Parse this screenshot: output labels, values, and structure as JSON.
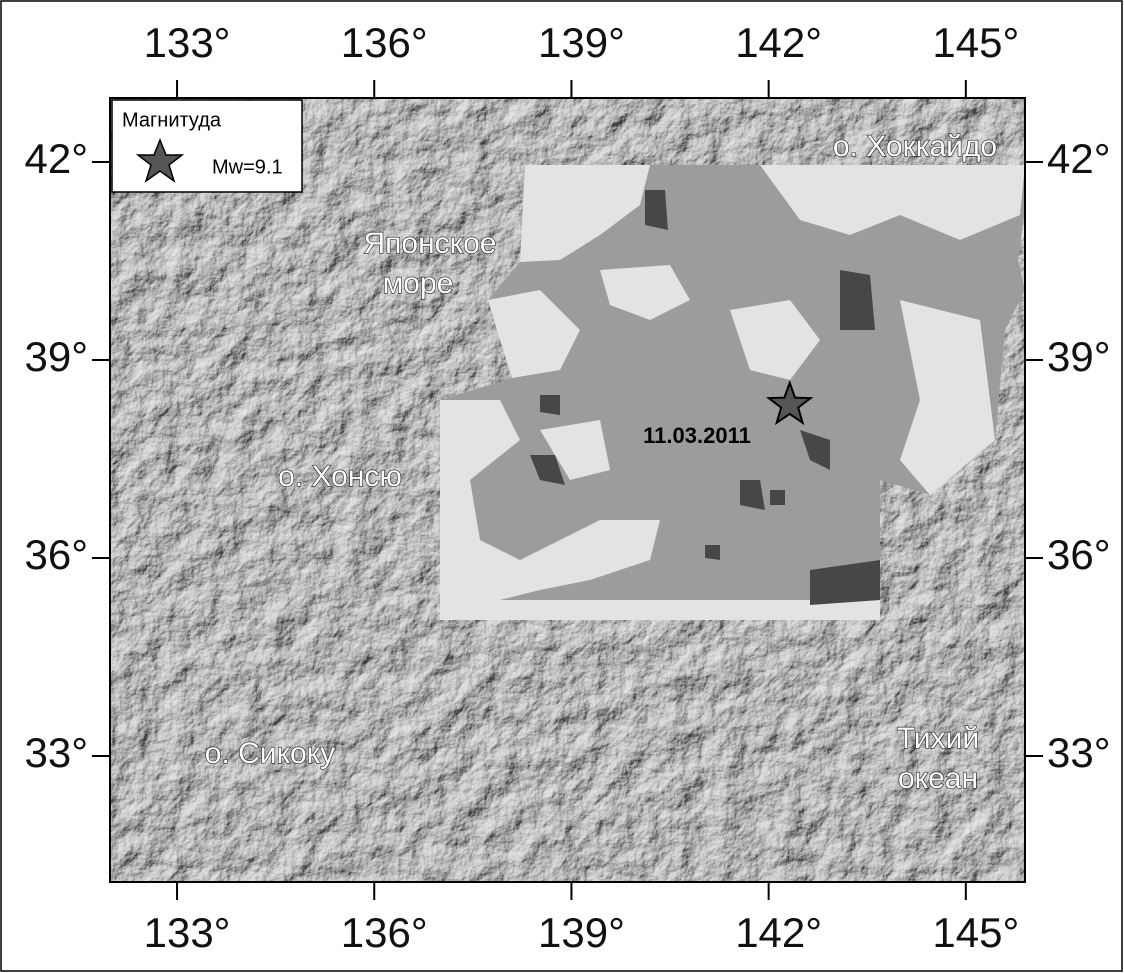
{
  "map": {
    "x_axis": {
      "lim": [
        131.98,
        145.9
      ],
      "ticks": [
        {
          "value": 133,
          "label": "133°"
        },
        {
          "value": 136,
          "label": "136°"
        },
        {
          "value": 139,
          "label": "139°"
        },
        {
          "value": 142,
          "label": "142°"
        },
        {
          "value": 145,
          "label": "145°"
        }
      ]
    },
    "y_axis": {
      "lim": [
        31.09,
        42.97
      ],
      "ticks": [
        {
          "value": 33,
          "label": "33°"
        },
        {
          "value": 36,
          "label": "36°"
        },
        {
          "value": 39,
          "label": "39°"
        },
        {
          "value": 42,
          "label": "42°"
        }
      ]
    },
    "legend": {
      "title": "Магнитуда",
      "items": [
        {
          "label": "Mw=9.1"
        }
      ]
    },
    "place_labels": [
      "о. Хоккайдо",
      "Японское",
      "море",
      "о. Хонсю",
      "о. Сикоку",
      "Тихий",
      "океан"
    ],
    "epicenter": {
      "lon": 142.32,
      "lat": 38.32,
      "label": "11.03.2011"
    }
  }
}
